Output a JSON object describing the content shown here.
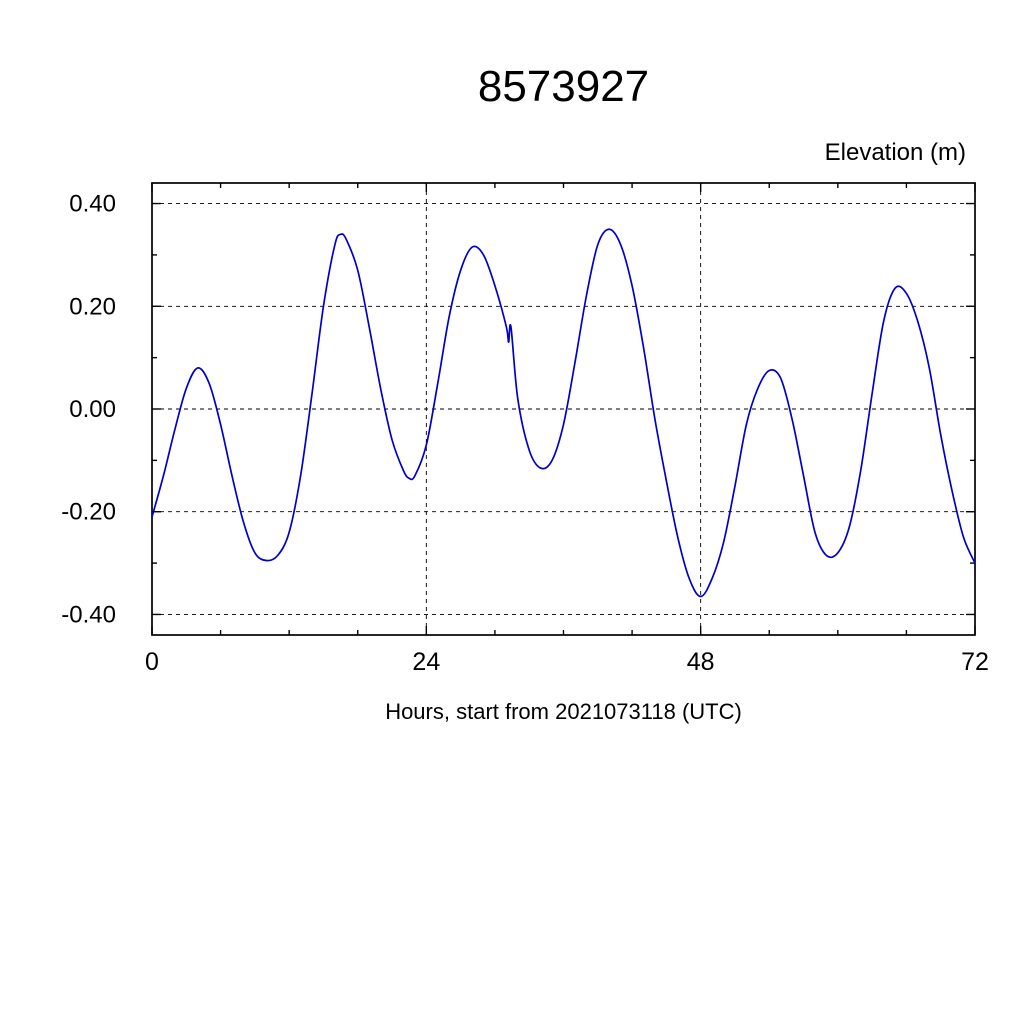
{
  "page": {
    "background": "#ffffff"
  },
  "chart_data": {
    "type": "line",
    "title": "8573927",
    "ylabel": "Elevation (m)",
    "xlabel": "Hours, start from 2021073118 (UTC)",
    "xlim": [
      0,
      72
    ],
    "ylim": [
      -0.44,
      0.44
    ],
    "xticks": [
      0,
      24,
      48,
      72
    ],
    "xtick_labels": [
      "0",
      "24",
      "48",
      "72"
    ],
    "x_minor_step": 6,
    "yticks": [
      -0.4,
      -0.2,
      0,
      0.2,
      0.4
    ],
    "ytick_labels": [
      "-0.40",
      "-0.20",
      "0.00",
      "0.20",
      "0.40"
    ],
    "y_minor_step": 0.1,
    "grid": {
      "x_gridlines": [
        24,
        48
      ],
      "y_gridlines": [
        -0.4,
        -0.2,
        0,
        0.2,
        0.4
      ],
      "style": "dashed"
    },
    "line_color": "#0000cd",
    "legend": "none",
    "series": [
      {
        "name": "elevation",
        "x": [
          0,
          1,
          2,
          3,
          4,
          5,
          6,
          7,
          8,
          9,
          10,
          11,
          12,
          13,
          14,
          15,
          16,
          16.5,
          17,
          18,
          19,
          20,
          21,
          22,
          22.5,
          23,
          24,
          25,
          26,
          27,
          28,
          29,
          30,
          31,
          31.2,
          31.4,
          32,
          33,
          34,
          35,
          36,
          37,
          38,
          39,
          40,
          41,
          42,
          43,
          44,
          45,
          46,
          47,
          48,
          49,
          50,
          51,
          52,
          53,
          54,
          55,
          56,
          57,
          58,
          59,
          60,
          61,
          62,
          63,
          64,
          65,
          66,
          67,
          68,
          69,
          70,
          71,
          72
        ],
        "y": [
          -0.21,
          -0.13,
          -0.04,
          0.04,
          0.08,
          0.05,
          -0.03,
          -0.13,
          -0.22,
          -0.28,
          -0.295,
          -0.285,
          -0.24,
          -0.13,
          0.03,
          0.2,
          0.32,
          0.34,
          0.33,
          0.27,
          0.16,
          0.04,
          -0.06,
          -0.12,
          -0.135,
          -0.13,
          -0.07,
          0.05,
          0.18,
          0.27,
          0.315,
          0.3,
          0.24,
          0.16,
          0.13,
          0.16,
          0.02,
          -0.08,
          -0.115,
          -0.1,
          -0.03,
          0.09,
          0.22,
          0.32,
          0.35,
          0.32,
          0.24,
          0.12,
          -0.02,
          -0.14,
          -0.25,
          -0.33,
          -0.365,
          -0.33,
          -0.26,
          -0.15,
          -0.03,
          0.04,
          0.075,
          0.06,
          -0.02,
          -0.13,
          -0.24,
          -0.285,
          -0.28,
          -0.23,
          -0.12,
          0.03,
          0.17,
          0.235,
          0.225,
          0.17,
          0.08,
          -0.05,
          -0.16,
          -0.25,
          -0.3
        ]
      }
    ]
  }
}
